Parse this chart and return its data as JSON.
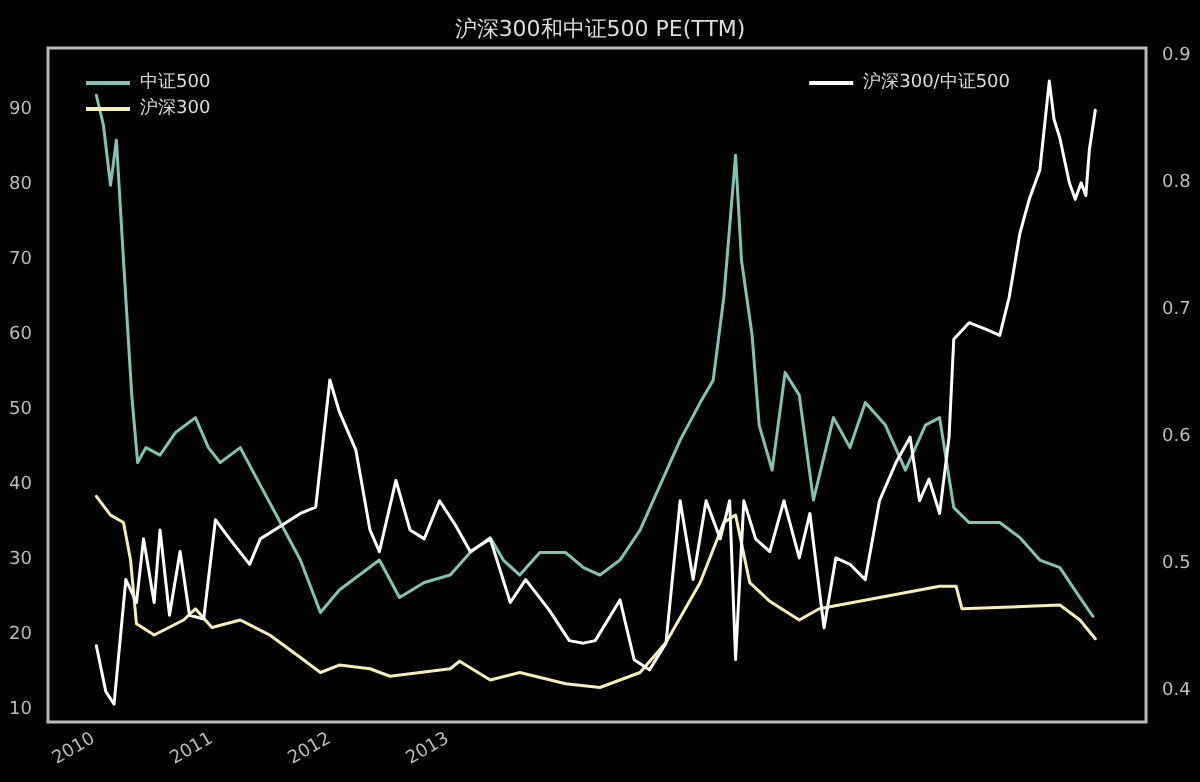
{
  "chart_data": {
    "type": "line",
    "title": "沪深300和中证500 PE(TTM)",
    "xlim": [
      2009.61,
      2018.92
    ],
    "xticks": [
      2010,
      2011,
      2012,
      2013
    ],
    "ylim": [
      8.4,
      98.3
    ],
    "yticks": [
      10,
      20,
      30,
      40,
      50,
      60,
      70,
      80,
      90
    ],
    "y2lim": [
      0.376,
      0.906
    ],
    "y2ticks": [
      0.4,
      0.5,
      0.6,
      0.7,
      0.8,
      0.9
    ],
    "grid": false,
    "legend": "top left",
    "marker": "none",
    "line_style": "solid",
    "series": [
      {
        "name": "中证500",
        "color": "#7fc4b4",
        "x": [
          2010.02,
          2010.08,
          2010.14,
          2010.19,
          2010.25,
          2010.32,
          2010.37,
          2010.44,
          2010.56,
          2010.69,
          2010.86,
          2010.97,
          2011.07,
          2011.24,
          2011.41,
          2011.58,
          2011.75,
          2011.92,
          2012.08,
          2012.25,
          2012.42,
          2012.59,
          2012.8,
          2013.02,
          2013.19,
          2013.36,
          2013.47,
          2013.61,
          2013.78,
          2014.0,
          2014.15,
          2014.29,
          2014.46,
          2014.63,
          2014.8,
          2014.97,
          2015.14,
          2015.25,
          2015.34,
          2015.44,
          2015.49,
          2015.58,
          2015.64,
          2015.75,
          2015.86,
          2015.98,
          2016.1,
          2016.27,
          2016.41,
          2016.54,
          2016.71,
          2016.88,
          2017.05,
          2017.17,
          2017.29,
          2017.42,
          2017.68,
          2017.85,
          2018.02,
          2018.19,
          2018.36,
          2018.47
        ],
        "values": [
          92,
          88,
          80,
          86,
          70,
          52,
          43,
          45,
          44,
          47,
          49,
          45,
          43,
          45,
          40,
          35,
          30,
          23,
          26,
          28,
          30,
          25,
          27,
          28,
          31,
          33,
          30,
          28,
          31,
          31,
          29,
          28,
          30,
          34,
          40,
          46,
          51,
          54,
          65,
          84,
          70,
          60,
          48,
          42,
          55,
          52,
          38,
          49,
          45,
          51,
          48,
          42,
          48,
          49,
          37,
          35,
          35,
          33,
          30,
          29,
          25,
          22.5
        ]
      },
      {
        "name": "沪深300",
        "color": "#f5f0b0",
        "x": [
          2010.02,
          2010.14,
          2010.25,
          2010.31,
          2010.36,
          2010.51,
          2010.76,
          2010.86,
          2011.0,
          2011.24,
          2011.49,
          2011.75,
          2011.92,
          2012.08,
          2012.34,
          2012.51,
          2013.02,
          2013.1,
          2013.36,
          2013.61,
          2014.0,
          2014.29,
          2014.63,
          2014.85,
          2015.14,
          2015.34,
          2015.44,
          2015.56,
          2015.73,
          2015.98,
          2016.15,
          2016.49,
          2016.83,
          2017.17,
          2017.31,
          2017.36,
          2018.19,
          2018.36,
          2018.49
        ],
        "values": [
          38.5,
          36,
          35,
          30,
          21.5,
          20,
          22,
          23.5,
          21,
          22,
          20,
          17,
          15,
          16,
          15.5,
          14.5,
          15.5,
          16.5,
          14,
          15,
          13.5,
          13,
          15,
          19,
          27,
          35,
          36,
          27,
          24.5,
          22,
          23.5,
          24.5,
          25.5,
          26.5,
          26.5,
          23.5,
          24,
          22,
          19.5
        ]
      },
      {
        "name": "沪深300/中证500",
        "color": "#ffffff",
        "axis": "y2",
        "x": [
          2010.02,
          2010.1,
          2010.17,
          2010.27,
          2010.36,
          2010.42,
          2010.51,
          2010.56,
          2010.64,
          2010.73,
          2010.81,
          2010.93,
          2011.03,
          2011.15,
          2011.32,
          2011.41,
          2011.58,
          2011.75,
          2011.88,
          2012.0,
          2012.08,
          2012.22,
          2012.34,
          2012.42,
          2012.56,
          2012.68,
          2012.8,
          2012.93,
          2013.07,
          2013.19,
          2013.36,
          2013.53,
          2013.66,
          2013.86,
          2014.03,
          2014.15,
          2014.25,
          2014.46,
          2014.58,
          2014.71,
          2014.85,
          2014.97,
          2015.08,
          2015.19,
          2015.31,
          2015.39,
          2015.44,
          2015.51,
          2015.61,
          2015.73,
          2015.85,
          2015.98,
          2016.07,
          2016.19,
          2016.29,
          2016.41,
          2016.54,
          2016.66,
          2016.8,
          2016.92,
          2017.0,
          2017.08,
          2017.17,
          2017.25,
          2017.29,
          2017.42,
          2017.56,
          2017.68,
          2017.76,
          2017.85,
          2017.93,
          2018.02,
          2018.1,
          2018.14,
          2018.19,
          2018.27,
          2018.32,
          2018.37,
          2018.41,
          2018.44,
          2018.49
        ],
        "values": [
          0.436,
          0.4,
          0.39,
          0.488,
          0.47,
          0.52,
          0.47,
          0.527,
          0.46,
          0.51,
          0.46,
          0.457,
          0.535,
          0.52,
          0.5,
          0.52,
          0.53,
          0.54,
          0.545,
          0.645,
          0.62,
          0.59,
          0.527,
          0.51,
          0.566,
          0.527,
          0.52,
          0.55,
          0.53,
          0.51,
          0.52,
          0.47,
          0.488,
          0.464,
          0.44,
          0.438,
          0.44,
          0.472,
          0.425,
          0.417,
          0.438,
          0.55,
          0.488,
          0.55,
          0.52,
          0.55,
          0.425,
          0.55,
          0.52,
          0.51,
          0.55,
          0.505,
          0.54,
          0.45,
          0.505,
          0.5,
          0.488,
          0.55,
          0.58,
          0.6,
          0.55,
          0.567,
          0.54,
          0.6,
          0.677,
          0.69,
          0.685,
          0.68,
          0.71,
          0.76,
          0.787,
          0.81,
          0.88,
          0.85,
          0.835,
          0.8,
          0.787,
          0.8,
          0.79,
          0.826,
          0.857
        ]
      }
    ]
  }
}
